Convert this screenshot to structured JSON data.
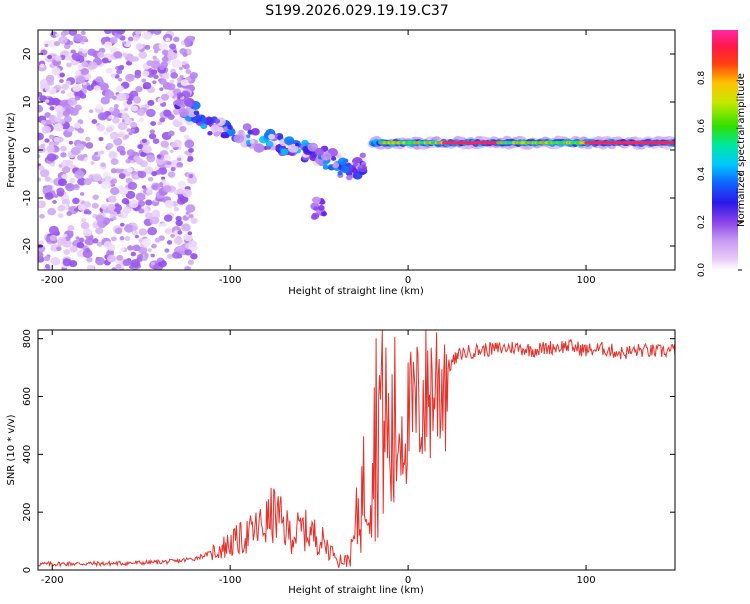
{
  "title": "S199.2026.029.19.19.C37",
  "colors": {
    "line": "#e8302a",
    "axis": "#000000",
    "colormap": [
      "#ffffff",
      "#e2c4f5",
      "#b27cf0",
      "#7a2ae8",
      "#3b10e0",
      "#1060ff",
      "#00c8ff",
      "#00e0a0",
      "#44e000",
      "#e0e000",
      "#ff8800",
      "#ff2020",
      "#ff2aa0"
    ]
  },
  "chart_data": [
    {
      "type": "heatmap",
      "title": "S199.2026.029.19.19.C37",
      "xlabel": "Height of straight line (km)",
      "ylabel": "Frequency (Hz)",
      "xlim": [
        -208,
        150
      ],
      "ylim": [
        -25,
        25
      ],
      "xticks": [
        -200,
        -100,
        0,
        100
      ],
      "yticks": [
        -20,
        -10,
        0,
        10,
        20
      ],
      "colorbar": {
        "label": "Normalized spectral amplitude",
        "range": [
          0.0,
          1.0
        ],
        "ticks": [
          0.0,
          0.2,
          0.4,
          0.6,
          0.8
        ]
      },
      "features": [
        {
          "name": "noise",
          "x_range": [
            -208,
            -120
          ],
          "freq_range": [
            -25,
            25
          ],
          "amplitude": 0.1
        },
        {
          "name": "descending-band",
          "x": [
            -130,
            -110,
            -90,
            -70,
            -50,
            -35,
            -25
          ],
          "freq": [
            10,
            5,
            3,
            1,
            -1,
            -4,
            -3
          ],
          "amplitude": 0.25
        },
        {
          "name": "spur",
          "x": [
            -50
          ],
          "freq": [
            -12
          ],
          "amplitude": 0.2
        },
        {
          "name": "stable-line",
          "x_range": [
            -20,
            150
          ],
          "freq": 1.5,
          "amplitude": 0.95
        }
      ]
    },
    {
      "type": "line",
      "xlabel": "Height of straight line (km)",
      "ylabel": "SNR (10 * v/v)",
      "xlim": [
        -208,
        150
      ],
      "ylim": [
        0,
        830
      ],
      "xticks": [
        -200,
        -100,
        0,
        100
      ],
      "yticks": [
        0,
        200,
        400,
        600,
        800
      ],
      "series": [
        {
          "name": "SNR",
          "x": [
            -208,
            -190,
            -170,
            -150,
            -130,
            -120,
            -110,
            -100,
            -90,
            -80,
            -75,
            -70,
            -65,
            -60,
            -55,
            -50,
            -45,
            -40,
            -35,
            -32,
            -30,
            -28,
            -25,
            -22,
            -20,
            -18,
            -16,
            -14,
            -12,
            -10,
            -8,
            -5,
            -2,
            0,
            5,
            10,
            15,
            20,
            25,
            30,
            40,
            50,
            60,
            70,
            80,
            90,
            100,
            110,
            120,
            130,
            140,
            150
          ],
          "y": [
            20,
            22,
            22,
            25,
            30,
            40,
            60,
            90,
            120,
            160,
            200,
            150,
            120,
            140,
            130,
            110,
            80,
            40,
            30,
            60,
            120,
            200,
            280,
            350,
            420,
            500,
            560,
            600,
            480,
            400,
            460,
            500,
            480,
            520,
            560,
            600,
            640,
            680,
            720,
            750,
            760,
            765,
            770,
            760,
            770,
            775,
            760,
            765,
            750,
            760,
            755,
            760
          ]
        }
      ]
    }
  ]
}
